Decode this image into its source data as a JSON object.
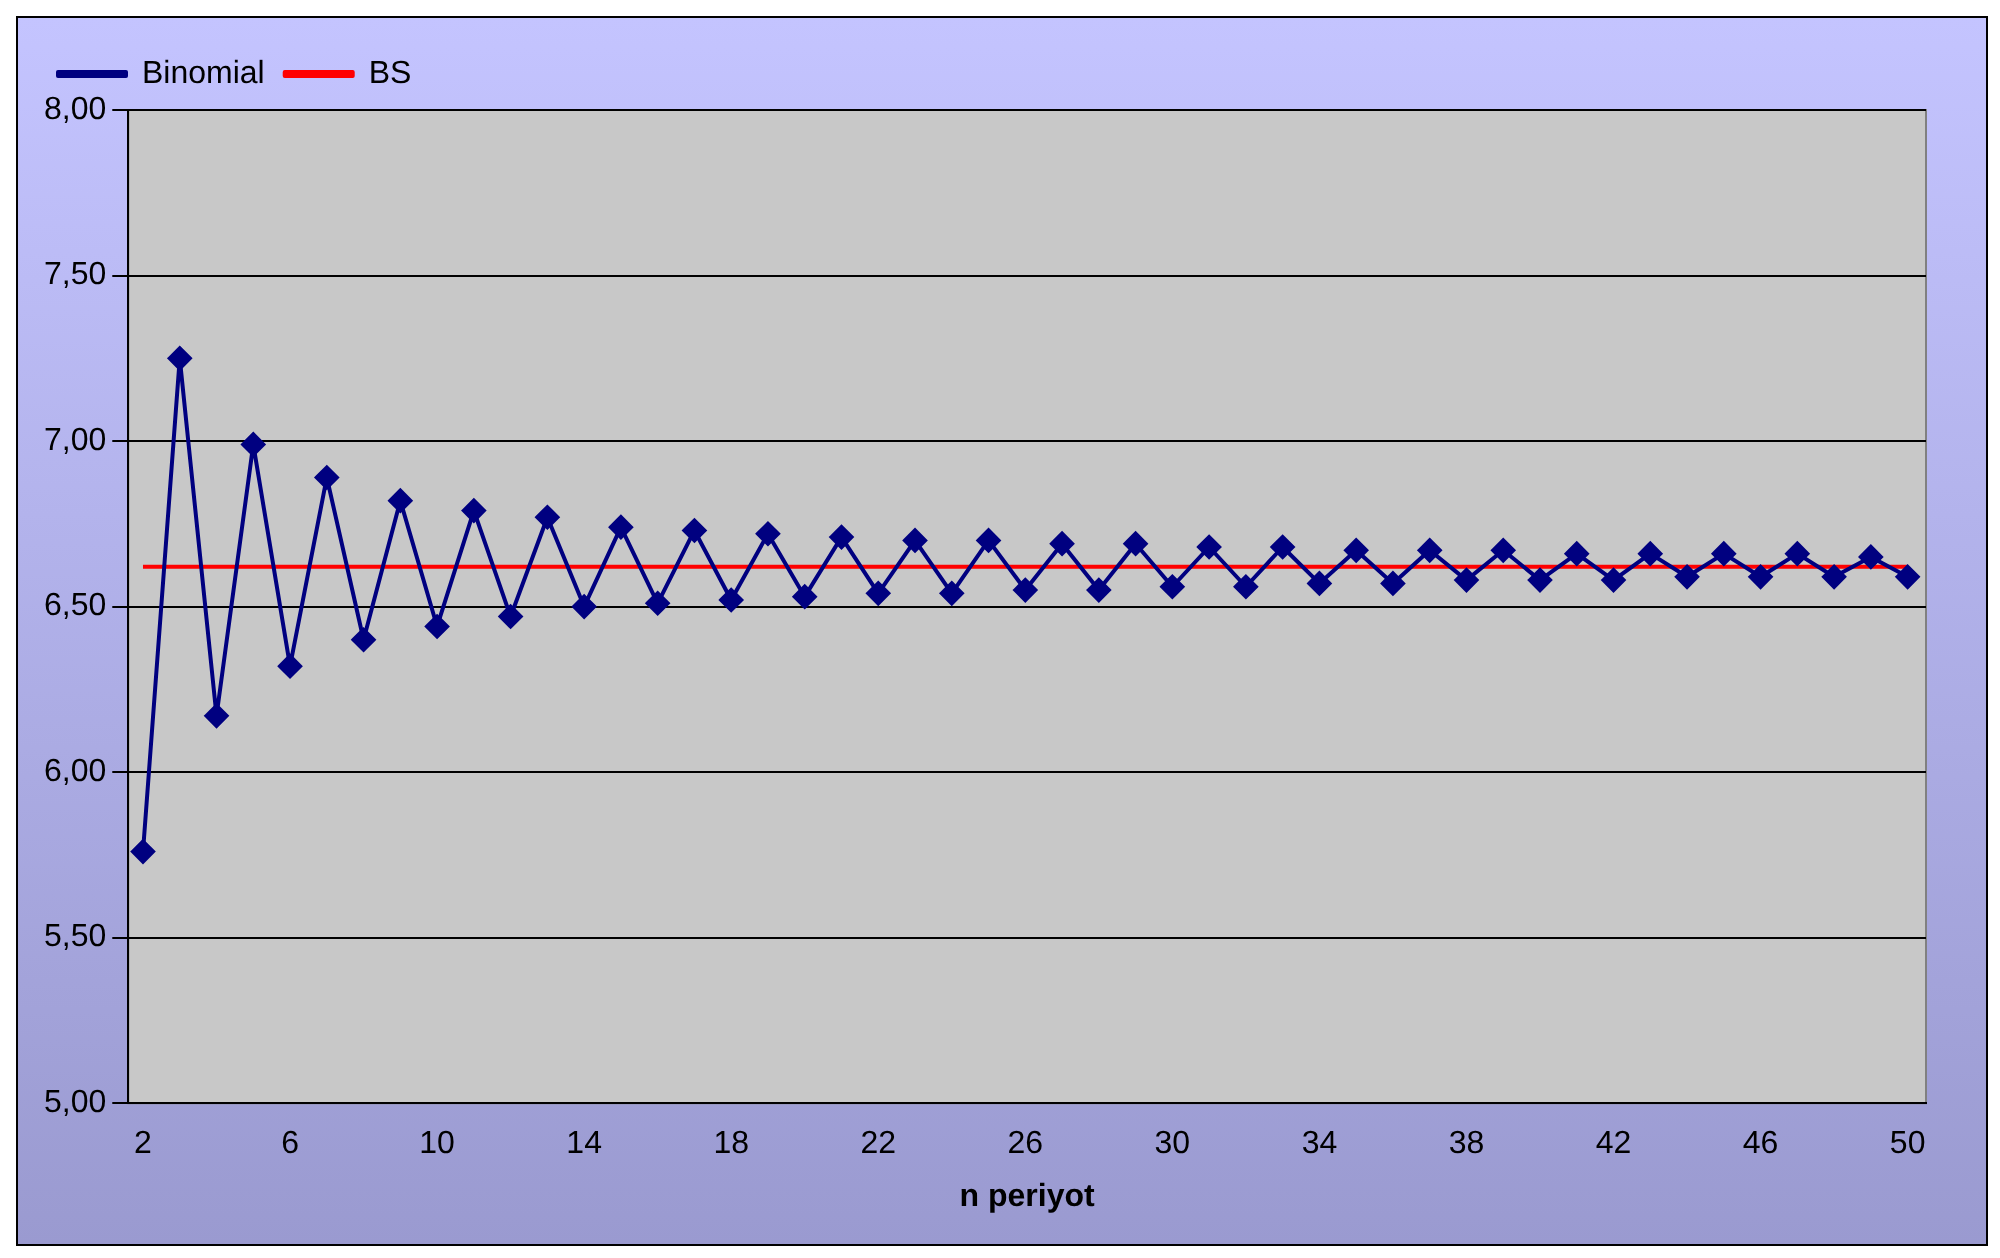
{
  "chart_data": {
    "type": "line",
    "xlabel": "n periyot",
    "x": [
      2,
      3,
      4,
      5,
      6,
      7,
      8,
      9,
      10,
      11,
      12,
      13,
      14,
      15,
      16,
      17,
      18,
      19,
      20,
      21,
      22,
      23,
      24,
      25,
      26,
      27,
      28,
      29,
      30,
      31,
      32,
      33,
      34,
      35,
      36,
      37,
      38,
      39,
      40,
      41,
      42,
      43,
      44,
      45,
      46,
      47,
      48,
      49,
      50
    ],
    "xlim": [
      1.6,
      50.5
    ],
    "xticks": [
      2,
      6,
      10,
      14,
      18,
      22,
      26,
      30,
      34,
      38,
      42,
      46,
      50
    ],
    "series": [
      {
        "name": "Binomial",
        "color": "#000080",
        "values": [
          5.76,
          7.25,
          6.17,
          6.99,
          6.32,
          6.89,
          6.4,
          6.82,
          6.44,
          6.79,
          6.47,
          6.77,
          6.5,
          6.74,
          6.51,
          6.73,
          6.52,
          6.72,
          6.53,
          6.71,
          6.54,
          6.7,
          6.54,
          6.7,
          6.55,
          6.69,
          6.55,
          6.69,
          6.56,
          6.68,
          6.56,
          6.68,
          6.57,
          6.67,
          6.57,
          6.67,
          6.58,
          6.67,
          6.58,
          6.66,
          6.58,
          6.66,
          6.59,
          6.66,
          6.59,
          6.66,
          6.59,
          6.65,
          6.59
        ]
      },
      {
        "name": "BS",
        "color": "#ff0000",
        "marker": "none",
        "values": [
          6.62,
          6.62,
          6.62,
          6.62,
          6.62,
          6.62,
          6.62,
          6.62,
          6.62,
          6.62,
          6.62,
          6.62,
          6.62,
          6.62,
          6.62,
          6.62,
          6.62,
          6.62,
          6.62,
          6.62,
          6.62,
          6.62,
          6.62,
          6.62,
          6.62,
          6.62,
          6.62,
          6.62,
          6.62,
          6.62,
          6.62,
          6.62,
          6.62,
          6.62,
          6.62,
          6.62,
          6.62,
          6.62,
          6.62,
          6.62,
          6.62,
          6.62,
          6.62,
          6.62,
          6.62,
          6.62,
          6.62,
          6.62,
          6.62
        ]
      }
    ],
    "ylim": [
      5,
      8
    ],
    "yticks": [
      {
        "value": 5,
        "label": "5,00"
      },
      {
        "value": 5.5,
        "label": "5,50"
      },
      {
        "value": 6,
        "label": "6,00"
      },
      {
        "value": 6.5,
        "label": "6,50"
      },
      {
        "value": 7,
        "label": "7,00"
      },
      {
        "value": 7.5,
        "label": "7,50"
      },
      {
        "value": 8,
        "label": "8,00"
      }
    ],
    "grid": "y",
    "legend": "top left",
    "marker": "diamond",
    "line_style": "solid"
  }
}
